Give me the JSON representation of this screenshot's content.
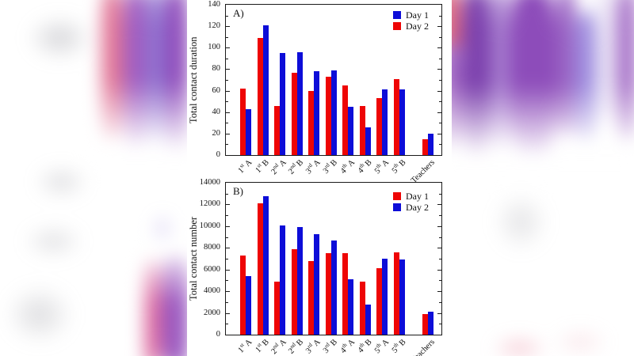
{
  "colors": {
    "day_red": "#ee0505",
    "day_blue": "#0d0dd8"
  },
  "categories_rich": [
    {
      "base": "1",
      "ord": "st",
      "cls": "A"
    },
    {
      "base": "1",
      "ord": "st",
      "cls": "B"
    },
    {
      "base": "2",
      "ord": "nd",
      "cls": "A"
    },
    {
      "base": "2",
      "ord": "nd",
      "cls": "B"
    },
    {
      "base": "3",
      "ord": "rd",
      "cls": "A"
    },
    {
      "base": "3",
      "ord": "rd",
      "cls": "B"
    },
    {
      "base": "4",
      "ord": "th",
      "cls": "A"
    },
    {
      "base": "4",
      "ord": "th",
      "cls": "B"
    },
    {
      "base": "5",
      "ord": "th",
      "cls": "A"
    },
    {
      "base": "5",
      "ord": "th",
      "cls": "B"
    },
    {
      "base": "Teachers",
      "ord": "",
      "cls": ""
    }
  ],
  "chart_data": [
    {
      "type": "bar",
      "panel_label": "A)",
      "title": "",
      "xlabel": "",
      "ylabel": "Total contact duration",
      "ylim": [
        0,
        140
      ],
      "ytick_step": 20,
      "yminor_step": 10,
      "ytick_labels": [
        "0",
        "20",
        "40",
        "60",
        "80",
        "100",
        "120",
        "140"
      ],
      "grid": false,
      "legend_position": "top-right",
      "categories": [
        "1st A",
        "1st B",
        "2nd A",
        "2nd B",
        "3rd A",
        "3rd B",
        "4th A",
        "4th B",
        "5th A",
        "5th B",
        "Teachers"
      ],
      "legend": [
        {
          "label": "Day 1",
          "color": "#0d0dd8"
        },
        {
          "label": "Day 2",
          "color": "#ee0505"
        }
      ],
      "series": [
        {
          "name": "Day 2",
          "color": "#ee0505",
          "values": [
            62,
            109,
            46,
            77,
            60,
            73,
            65,
            46,
            53,
            71,
            15
          ]
        },
        {
          "name": "Day 1",
          "color": "#0d0dd8",
          "values": [
            43,
            121,
            95,
            96,
            78,
            79,
            45,
            26,
            61,
            61,
            20
          ]
        }
      ]
    },
    {
      "type": "bar",
      "panel_label": "B)",
      "title": "",
      "xlabel": "",
      "ylabel": "Total contact number",
      "ylim": [
        0,
        14000
      ],
      "ytick_step": 2000,
      "yminor_step": 1000,
      "ytick_labels": [
        "0",
        "2000",
        "4000",
        "6000",
        "8000",
        "10000",
        "12000",
        "14000"
      ],
      "grid": false,
      "legend_position": "top-right",
      "categories": [
        "1st A",
        "1st B",
        "2nd A",
        "2nd B",
        "3rd A",
        "3rd B",
        "4th A",
        "4th B",
        "5th A",
        "5th B",
        "Teachers"
      ],
      "legend": [
        {
          "label": "Day 1",
          "color": "#ee0505"
        },
        {
          "label": "Day 2",
          "color": "#0d0dd8"
        }
      ],
      "series": [
        {
          "name": "Day 1",
          "color": "#ee0505",
          "values": [
            7300,
            12100,
            4900,
            7900,
            6800,
            7500,
            7500,
            4900,
            6100,
            7600,
            1900
          ]
        },
        {
          "name": "Day 2",
          "color": "#0d0dd8",
          "values": [
            5400,
            12800,
            10100,
            9900,
            9300,
            8700,
            5100,
            2800,
            7000,
            6900,
            2100
          ]
        }
      ]
    }
  ]
}
